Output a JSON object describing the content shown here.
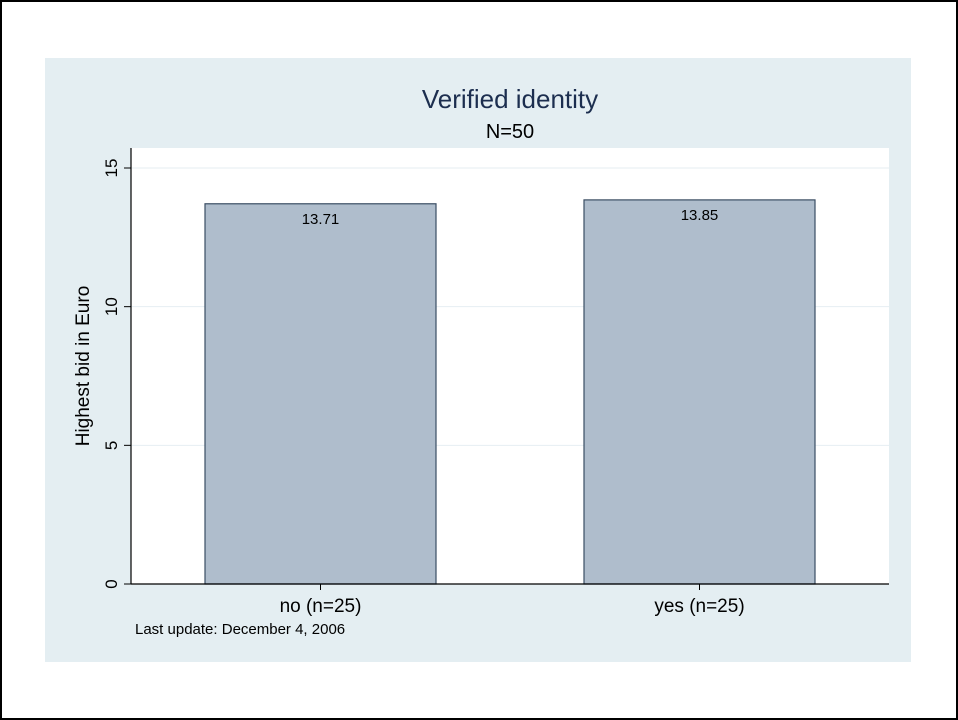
{
  "chart_data": {
    "type": "bar",
    "title": "Verified identity",
    "subtitle": "N=50",
    "categories": [
      "no (n=25)",
      "yes (n=25)"
    ],
    "values": [
      13.71,
      13.85
    ],
    "value_labels": [
      "13.71",
      "13.85"
    ],
    "xlabel": "",
    "ylabel": "Highest bid in Euro",
    "ylim": [
      0,
      15
    ],
    "yticks": [
      0,
      5,
      10,
      15
    ],
    "ytick_labels": [
      "0",
      "5",
      "10",
      "15"
    ],
    "grid": true,
    "legend": "none",
    "note": "Last update: December 4, 2006",
    "colors": {
      "outer_background": "#e4eef2",
      "plot_background": "#ffffff",
      "bar_fill": "#afbdcc",
      "bar_stroke": "#3a4d63",
      "grid": "#e6eef2",
      "title": "#1c2e4f"
    }
  }
}
